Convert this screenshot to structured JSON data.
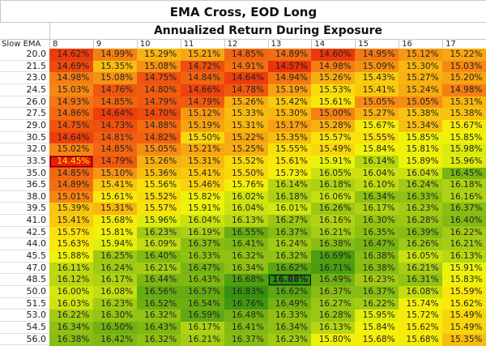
{
  "title": "EMA Cross, EOD Long",
  "subtitle": "Annualized Return During Exposure",
  "chart_data": {
    "type": "heatmap",
    "title": "EMA Cross, EOD Long",
    "subtitle": "Annualized Return During Exposure",
    "row_header": "Slow EMA",
    "columns": [
      "8",
      "9",
      "10",
      "11",
      "12",
      "13",
      "14",
      "15",
      "16",
      "17"
    ],
    "rows": [
      "20.0",
      "21.5",
      "23.0",
      "24.5",
      "26.0",
      "27.5",
      "29.0",
      "30.5",
      "32.0",
      "33.5",
      "35.0",
      "36.5",
      "38.0",
      "39.5",
      "41.0",
      "42.5",
      "44.0",
      "45.5",
      "47.0",
      "48.5",
      "50.0",
      "51.5",
      "53.0",
      "54.5",
      "56.0"
    ],
    "unit": "%",
    "color_scale": {
      "low": "#e81c0a",
      "mid": "#f5f00a",
      "high": "#2e8c10"
    },
    "highlight_min": 14.45,
    "highlight_max": 16.88,
    "values": [
      [
        14.62,
        14.99,
        15.29,
        15.21,
        14.85,
        14.89,
        14.6,
        14.95,
        15.12,
        15.22
      ],
      [
        14.69,
        15.35,
        15.08,
        14.72,
        14.91,
        14.57,
        14.98,
        15.09,
        15.3,
        15.03
      ],
      [
        14.98,
        15.08,
        14.75,
        14.84,
        14.64,
        14.94,
        15.26,
        15.43,
        15.27,
        15.2
      ],
      [
        15.03,
        14.76,
        14.8,
        14.66,
        14.78,
        15.19,
        15.53,
        15.41,
        15.24,
        14.98
      ],
      [
        14.93,
        14.85,
        14.79,
        14.79,
        15.26,
        15.42,
        15.61,
        15.05,
        15.05,
        15.31
      ],
      [
        14.86,
        14.64,
        14.7,
        15.12,
        15.33,
        15.3,
        15.0,
        15.27,
        15.38,
        15.38
      ],
      [
        14.75,
        14.73,
        14.88,
        15.19,
        15.31,
        15.17,
        15.28,
        15.67,
        15.34,
        15.67
      ],
      [
        14.64,
        14.81,
        14.82,
        15.5,
        15.22,
        15.35,
        15.57,
        15.55,
        15.85,
        15.85
      ],
      [
        15.02,
        14.85,
        15.05,
        15.21,
        15.25,
        15.55,
        15.49,
        15.84,
        15.81,
        15.98
      ],
      [
        14.45,
        14.79,
        15.26,
        15.31,
        15.52,
        15.61,
        15.91,
        16.14,
        15.89,
        15.96
      ],
      [
        14.85,
        15.1,
        15.36,
        15.41,
        15.5,
        15.73,
        16.05,
        16.04,
        16.04,
        16.45
      ],
      [
        14.89,
        15.41,
        15.56,
        15.46,
        15.76,
        16.14,
        16.18,
        16.1,
        16.24,
        16.18
      ],
      [
        15.01,
        15.61,
        15.52,
        15.82,
        16.02,
        16.18,
        16.06,
        16.34,
        16.33,
        16.16
      ],
      [
        15.39,
        15.31,
        15.57,
        15.91,
        16.04,
        16.01,
        16.26,
        16.17,
        16.23,
        16.37
      ],
      [
        15.41,
        15.68,
        15.96,
        16.04,
        16.13,
        16.27,
        16.16,
        16.3,
        16.28,
        16.4
      ],
      [
        15.57,
        15.81,
        16.23,
        16.19,
        16.55,
        16.37,
        16.21,
        16.35,
        16.39,
        16.22
      ],
      [
        15.63,
        15.94,
        16.09,
        16.37,
        16.41,
        16.24,
        16.38,
        16.47,
        16.26,
        16.21
      ],
      [
        15.88,
        16.25,
        16.4,
        16.33,
        16.32,
        16.32,
        16.69,
        16.38,
        16.05,
        16.13
      ],
      [
        16.11,
        16.24,
        16.21,
        16.47,
        16.34,
        16.62,
        16.71,
        16.38,
        16.21,
        15.91
      ],
      [
        16.12,
        16.17,
        16.44,
        16.43,
        16.68,
        16.88,
        16.49,
        16.23,
        16.31,
        15.83
      ],
      [
        16.0,
        16.08,
        16.56,
        16.57,
        16.83,
        16.62,
        16.37,
        16.37,
        16.08,
        15.59
      ],
      [
        16.03,
        16.23,
        16.52,
        16.54,
        16.76,
        16.49,
        16.27,
        16.22,
        15.74,
        15.62
      ],
      [
        16.22,
        16.3,
        16.32,
        16.59,
        16.48,
        16.33,
        16.28,
        15.95,
        15.72,
        15.49
      ],
      [
        16.34,
        16.5,
        16.43,
        16.17,
        16.41,
        16.34,
        16.13,
        15.84,
        15.62,
        15.49
      ],
      [
        16.38,
        16.42,
        16.32,
        16.21,
        16.37,
        16.23,
        15.8,
        15.68,
        15.68,
        15.35
      ]
    ]
  }
}
